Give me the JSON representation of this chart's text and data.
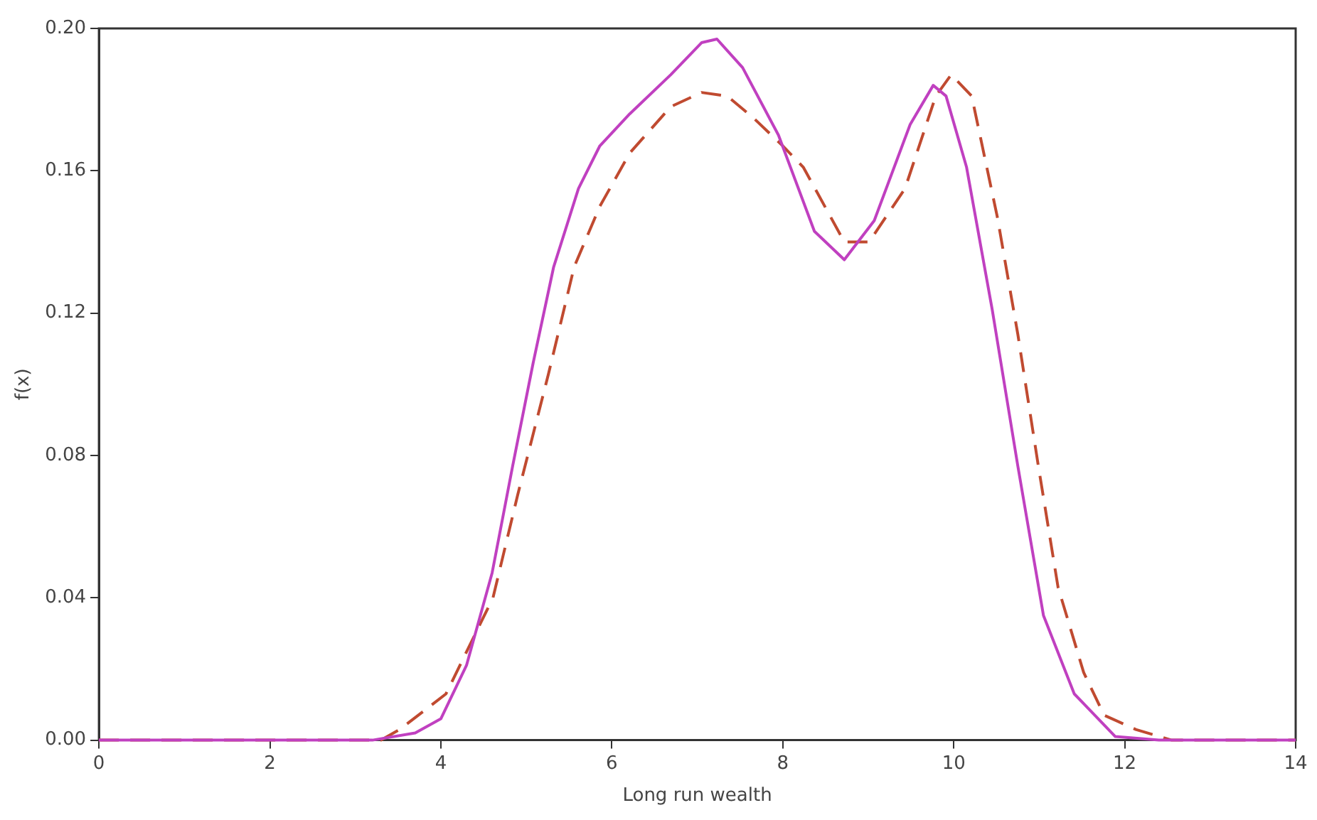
{
  "chart_data": {
    "type": "line",
    "xlabel": "Long run wealth",
    "ylabel": "f(x)",
    "xlim": [
      0,
      14
    ],
    "xticks": [
      0,
      2,
      4,
      6,
      8,
      10,
      12,
      14
    ],
    "ylim": [
      0,
      0.2
    ],
    "yticks": [
      {
        "value": 0,
        "label": "0.00"
      },
      {
        "value": 0.04,
        "label": "0.04"
      },
      {
        "value": 0.08,
        "label": "0.08"
      },
      {
        "value": 0.12,
        "label": "0.12"
      },
      {
        "value": 0.16,
        "label": "0.16"
      },
      {
        "value": 0.2,
        "label": "0.20"
      }
    ],
    "grid": false,
    "legend": false,
    "marker": "none",
    "series": [
      {
        "color": "#c040c0",
        "line_style": "solid",
        "x": [
          0,
          3.2,
          3.7,
          4.0,
          4.3,
          4.6,
          4.84,
          5.08,
          5.32,
          5.61,
          5.86,
          6.21,
          6.69,
          7.05,
          7.23,
          7.53,
          7.95,
          8.37,
          8.72,
          9.07,
          9.49,
          9.76,
          9.91,
          10.15,
          10.45,
          10.75,
          11.05,
          11.41,
          11.89,
          12.4,
          14
        ],
        "values": [
          0,
          0,
          0.002,
          0.006,
          0.021,
          0.047,
          0.077,
          0.106,
          0.133,
          0.155,
          0.167,
          0.176,
          0.187,
          0.196,
          0.197,
          0.189,
          0.17,
          0.143,
          0.135,
          0.146,
          0.173,
          0.184,
          0.181,
          0.161,
          0.121,
          0.077,
          0.035,
          0.013,
          0.001,
          0,
          0
        ]
      },
      {
        "color": "#c04a30",
        "line_style": "dashed",
        "x": [
          0,
          3.3,
          3.52,
          4.06,
          4.61,
          4.9,
          5.26,
          5.56,
          5.86,
          6.21,
          6.69,
          7.05,
          7.35,
          7.65,
          8.0,
          8.24,
          8.72,
          9.01,
          9.43,
          9.79,
          9.97,
          10.21,
          10.51,
          10.75,
          10.99,
          11.22,
          11.52,
          11.76,
          12.13,
          12.55,
          14
        ],
        "values": [
          0,
          0,
          0.003,
          0.013,
          0.04,
          0.069,
          0.103,
          0.133,
          0.15,
          0.165,
          0.178,
          0.182,
          0.181,
          0.175,
          0.167,
          0.161,
          0.14,
          0.14,
          0.155,
          0.181,
          0.187,
          0.181,
          0.147,
          0.114,
          0.077,
          0.043,
          0.019,
          0.007,
          0.003,
          0,
          0
        ]
      }
    ]
  }
}
